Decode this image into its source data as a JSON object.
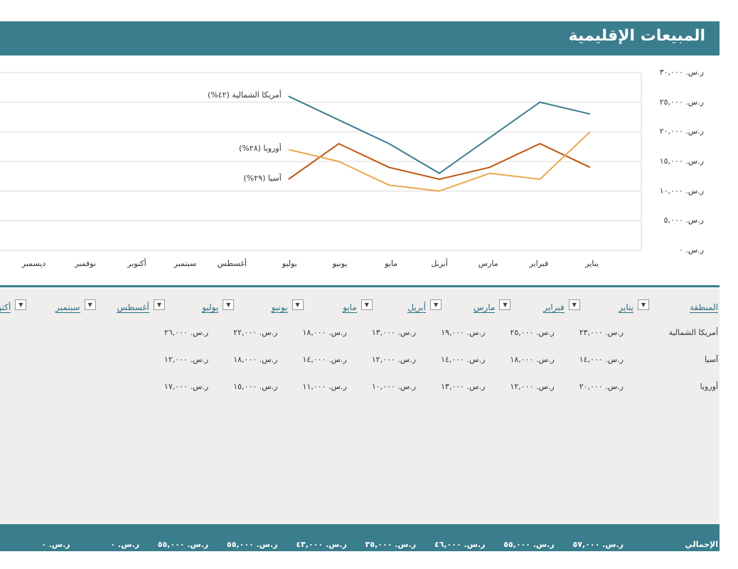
{
  "header": {
    "title": "المبيعات الإقليمية"
  },
  "chart_data": {
    "type": "line",
    "categories": [
      "يناير",
      "فبراير",
      "مارس",
      "أبريل",
      "مايو",
      "يونيو",
      "يوليو",
      "أغسطس",
      "سبتمبر",
      "أكتوبر",
      "نوفمبر",
      "ديسمبر"
    ],
    "series": [
      {
        "name": "أمريكا الشمالية (٤٢%)",
        "color": "#3b7d8e",
        "values": [
          23000,
          25000,
          19000,
          13000,
          18000,
          22000,
          26000,
          null,
          null,
          null,
          null,
          null
        ]
      },
      {
        "name": "آسيا (٢٩%)",
        "color": "#c0560f",
        "values": [
          14000,
          18000,
          14000,
          12000,
          14000,
          18000,
          12000,
          null,
          null,
          null,
          null,
          null
        ]
      },
      {
        "name": "أوروبا (٢٨%)",
        "color": "#e8a84a",
        "values": [
          20000,
          12000,
          13000,
          10000,
          11000,
          15000,
          17000,
          null,
          null,
          null,
          null,
          null
        ]
      }
    ],
    "ylim": [
      0,
      30000
    ],
    "yticks": [
      {
        "value": 0,
        "label": "ر.س. ٠"
      },
      {
        "value": 5000,
        "label": "ر.س. ٥,٠٠٠"
      },
      {
        "value": 10000,
        "label": "ر.س. ١٠,٠٠٠"
      },
      {
        "value": 15000,
        "label": "ر.س. ١٥,٠٠٠"
      },
      {
        "value": 20000,
        "label": "ر.س. ٢٠,٠٠٠"
      },
      {
        "value": 25000,
        "label": "ر.س. ٢٥,٠٠٠"
      },
      {
        "value": 30000,
        "label": "ر.س. ٣٠,٠٠٠"
      }
    ],
    "grid": true
  },
  "table": {
    "columns": [
      "المنطقة",
      "يناير",
      "فبراير",
      "مارس",
      "أبريل",
      "مايو",
      "يونيو",
      "يوليو",
      "أغسطس",
      "سبتمبر",
      "أكتوبر"
    ],
    "rows": [
      [
        "أمريكا الشمالية",
        "ر.س. ٢٣,٠٠٠",
        "ر.س. ٢٥,٠٠٠",
        "ر.س. ١٩,٠٠٠",
        "ر.س. ١٣,٠٠٠",
        "ر.س. ١٨,٠٠٠",
        "ر.س. ٢٢,٠٠٠",
        "ر.س. ٢٦,٠٠٠"
      ],
      [
        "آسيا",
        "ر.س. ١٤,٠٠٠",
        "ر.س. ١٨,٠٠٠",
        "ر.س. ١٤,٠٠٠",
        "ر.س. ١٢,٠٠٠",
        "ر.س. ١٤,٠٠٠",
        "ر.س. ١٨,٠٠٠",
        "ر.س. ١٢,٠٠٠"
      ],
      [
        "أوروبا",
        "ر.س. ٢٠,٠٠٠",
        "ر.س. ١٢,٠٠٠",
        "ر.س. ١٣,٠٠٠",
        "ر.س. ١٠,٠٠٠",
        "ر.س. ١١,٠٠٠",
        "ر.س. ١٥,٠٠٠",
        "ر.س. ١٧,٠٠٠"
      ]
    ],
    "totals": [
      "الإجمالي",
      "ر.س. ٥٧,٠٠٠",
      "ر.س. ٥٥,٠٠٠",
      "ر.س. ٤٦,٠٠٠",
      "ر.س. ٣٥,٠٠٠",
      "ر.س. ٤٣,٠٠٠",
      "ر.س. ٥٥,٠٠٠",
      "ر.س. ٥٥,٠٠٠",
      "ر.س. ٠",
      "ر.س. ٠"
    ]
  }
}
